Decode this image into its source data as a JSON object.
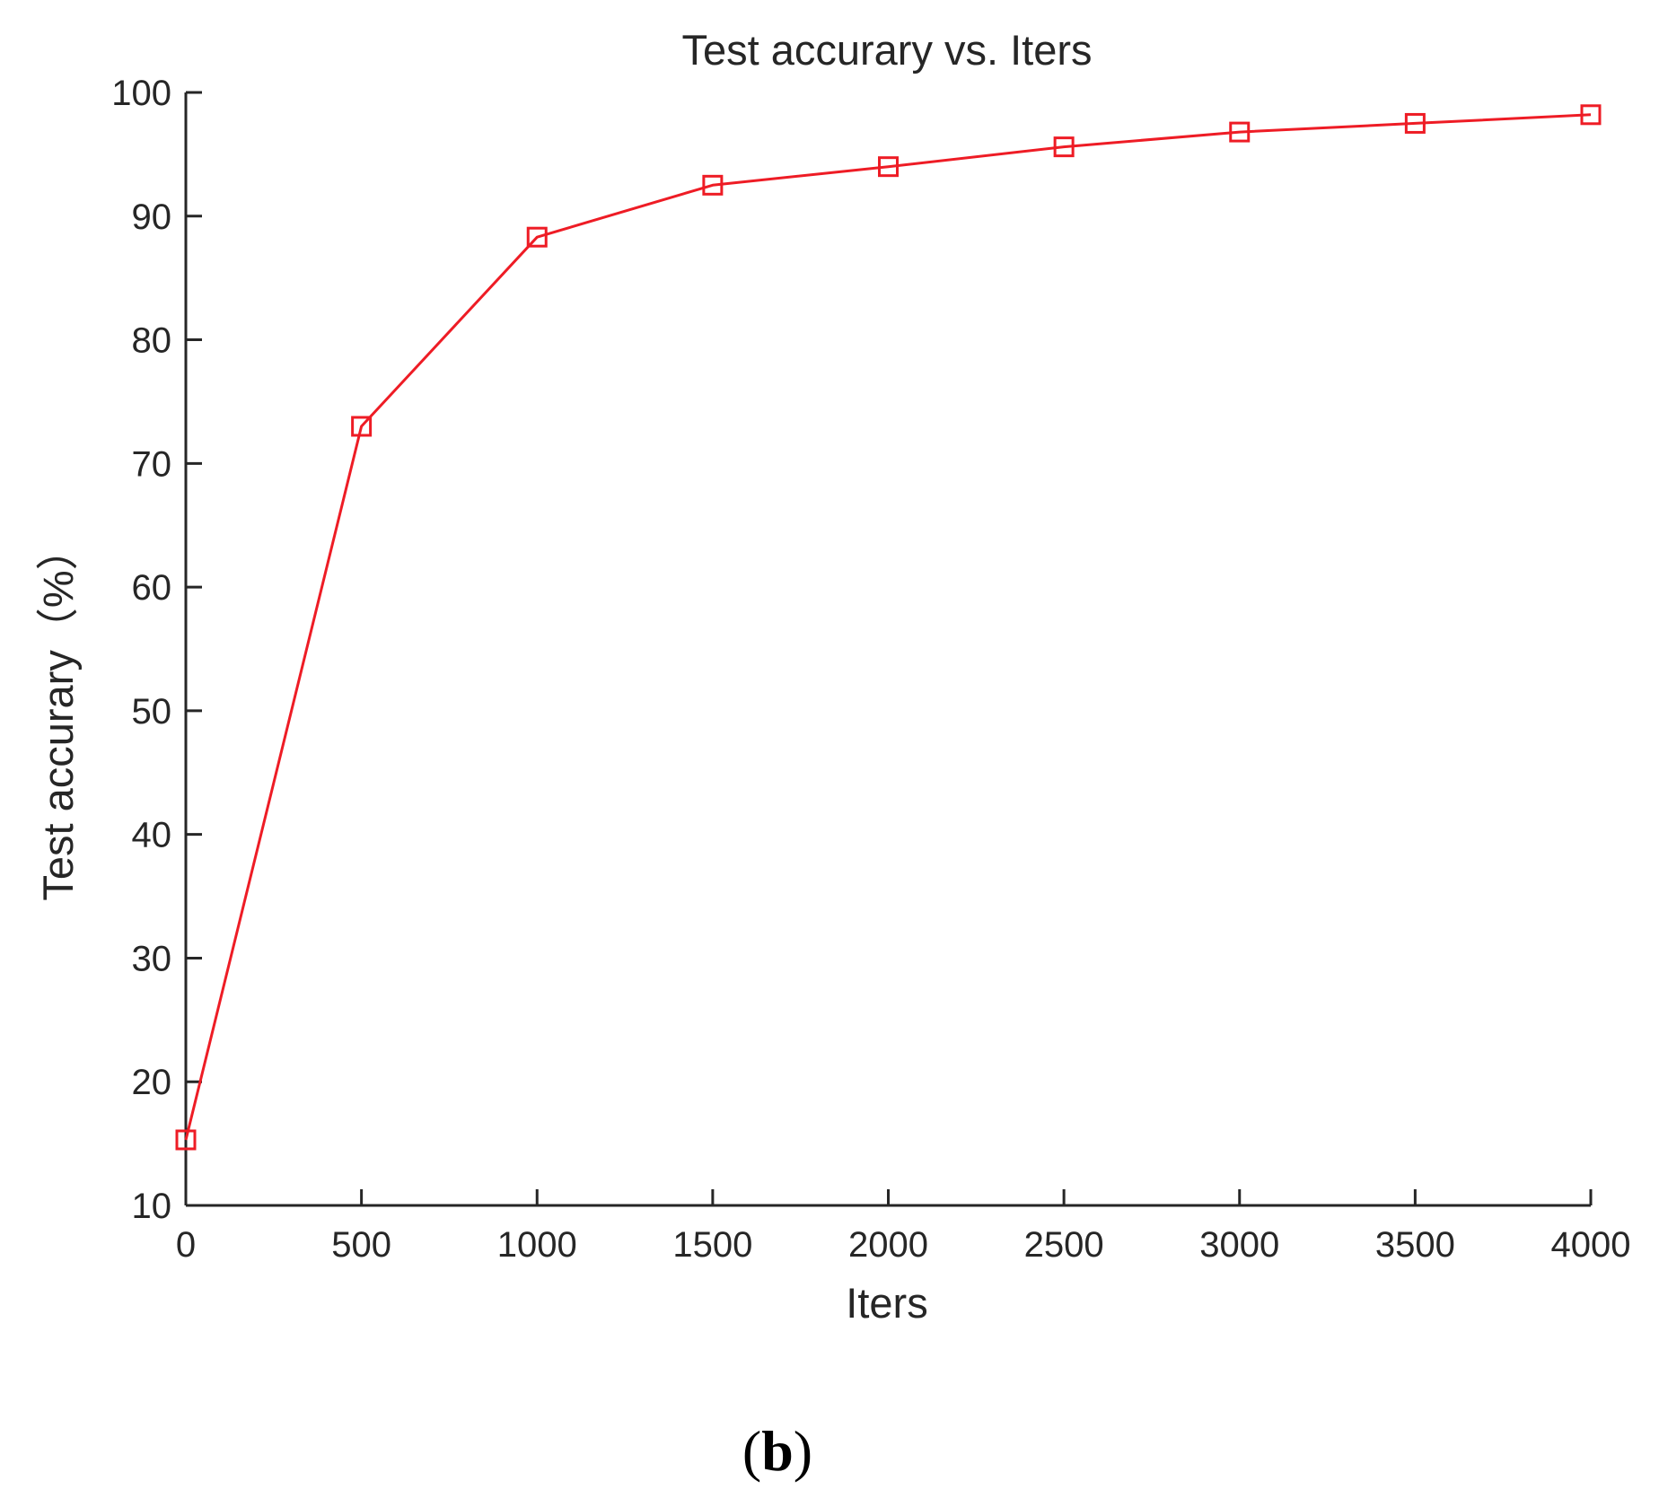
{
  "chart_data": {
    "type": "line",
    "title": "Test accurary vs. Iters",
    "xlabel": "Iters",
    "ylabel": "Test accurary（%）",
    "xlim": [
      0,
      4000
    ],
    "ylim": [
      10,
      100
    ],
    "xticks": [
      0,
      500,
      1000,
      1500,
      2000,
      2500,
      3000,
      3500,
      4000
    ],
    "yticks": [
      10,
      20,
      30,
      40,
      50,
      60,
      70,
      80,
      90,
      100
    ],
    "grid": false,
    "series": [
      {
        "color": "#ee1c25",
        "marker": "square",
        "x": [
          0,
          500,
          1000,
          1500,
          2000,
          2500,
          3000,
          3500,
          4000
        ],
        "y": [
          15.3,
          73.0,
          88.3,
          92.5,
          94.0,
          95.6,
          96.8,
          97.5,
          98.2
        ]
      }
    ]
  },
  "panel_label": {
    "open": "(",
    "letter": "b",
    "close": ")"
  }
}
